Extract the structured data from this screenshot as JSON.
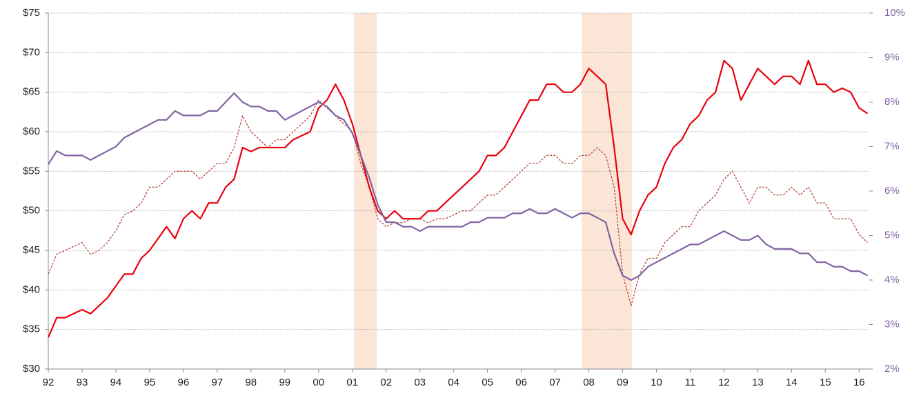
{
  "chart_data": {
    "type": "line",
    "x": [
      1992,
      1992.25,
      1992.5,
      1992.75,
      1993,
      1993.25,
      1993.5,
      1993.75,
      1994,
      1994.25,
      1994.5,
      1994.75,
      1995,
      1995.25,
      1995.5,
      1995.75,
      1996,
      1996.25,
      1996.5,
      1996.75,
      1997,
      1997.25,
      1997.5,
      1997.75,
      1998,
      1998.25,
      1998.5,
      1998.75,
      1999,
      1999.25,
      1999.5,
      1999.75,
      2000,
      2000.25,
      2000.5,
      2000.75,
      2001,
      2001.25,
      2001.5,
      2001.75,
      2002,
      2002.25,
      2002.5,
      2002.75,
      2003,
      2003.25,
      2003.5,
      2003.75,
      2004,
      2004.25,
      2004.5,
      2004.75,
      2005,
      2005.25,
      2005.5,
      2005.75,
      2006,
      2006.25,
      2006.5,
      2006.75,
      2007,
      2007.25,
      2007.5,
      2007.75,
      2008,
      2008.25,
      2008.5,
      2008.75,
      2009,
      2009.25,
      2009.5,
      2009.75,
      2010,
      2010.25,
      2010.5,
      2010.75,
      2011,
      2011.25,
      2011.5,
      2011.75,
      2012,
      2012.25,
      2012.5,
      2012.75,
      2013,
      2013.25,
      2013.5,
      2013.75,
      2014,
      2014.25,
      2014.5,
      2014.75,
      2015,
      2015.25,
      2015.5,
      2015.75,
      2016,
      2016.25
    ],
    "series": [
      {
        "color": "#e8000b",
        "style": "solid",
        "axis": "y",
        "values": [
          34,
          36.5,
          36.5,
          37,
          37.5,
          37,
          38,
          39,
          40.5,
          42,
          42,
          44,
          45,
          46.5,
          48,
          46.5,
          49,
          50,
          49,
          51,
          51,
          53,
          54,
          58,
          57.5,
          58,
          58,
          58,
          58,
          59,
          59.5,
          60,
          63,
          64,
          66,
          64,
          61,
          57,
          53,
          50,
          49,
          50,
          49,
          49,
          49,
          50,
          50,
          51,
          52,
          53,
          54,
          55,
          57,
          57,
          58,
          60,
          62,
          64,
          64,
          66,
          66,
          65,
          65,
          66,
          68,
          67,
          66,
          58,
          49,
          47,
          50,
          52,
          53,
          56,
          58,
          59,
          61,
          62,
          64,
          65,
          69,
          68,
          64,
          66,
          68,
          67,
          66,
          67,
          67,
          66,
          69,
          66,
          66,
          65,
          65.5,
          65,
          63,
          62.3
        ]
      },
      {
        "color": "#b5443a",
        "style": "dashed",
        "axis": "y",
        "values": [
          42,
          44.5,
          45,
          45.5,
          46,
          44.5,
          45,
          46,
          47.5,
          49.5,
          50,
          51,
          53,
          53,
          54,
          55,
          55,
          55,
          54,
          55,
          56,
          56,
          58,
          62,
          60,
          59,
          58,
          59,
          59,
          60,
          61,
          62,
          64,
          63,
          62,
          61,
          60,
          56,
          53,
          49,
          48,
          48.5,
          48.5,
          49,
          49,
          48.5,
          49,
          49,
          49.5,
          50,
          50,
          51,
          52,
          52,
          53,
          54,
          55,
          56,
          56,
          57,
          57,
          56,
          56,
          57,
          57,
          58,
          57,
          53,
          42,
          38,
          42,
          44,
          44,
          46,
          47,
          48,
          48,
          50,
          51,
          52,
          54,
          55,
          53,
          51,
          53,
          53,
          52,
          52,
          53,
          52,
          53,
          51,
          51,
          49,
          49,
          49,
          47,
          46
        ]
      },
      {
        "color": "#8064a2",
        "style": "solid",
        "axis": "y2",
        "values": [
          6.6,
          6.9,
          6.8,
          6.8,
          6.8,
          6.7,
          6.8,
          6.9,
          7.0,
          7.2,
          7.3,
          7.4,
          7.5,
          7.6,
          7.6,
          7.8,
          7.7,
          7.7,
          7.7,
          7.8,
          7.8,
          8.0,
          8.2,
          8.0,
          7.9,
          7.9,
          7.8,
          7.8,
          7.6,
          7.7,
          7.8,
          7.9,
          8.0,
          7.9,
          7.7,
          7.6,
          7.3,
          6.8,
          6.3,
          5.7,
          5.3,
          5.3,
          5.2,
          5.2,
          5.1,
          5.2,
          5.2,
          5.2,
          5.2,
          5.2,
          5.3,
          5.3,
          5.4,
          5.4,
          5.4,
          5.5,
          5.5,
          5.6,
          5.5,
          5.5,
          5.6,
          5.5,
          5.4,
          5.5,
          5.5,
          5.4,
          5.3,
          4.6,
          4.1,
          4.0,
          4.1,
          4.3,
          4.4,
          4.5,
          4.6,
          4.7,
          4.8,
          4.8,
          4.9,
          5.0,
          5.1,
          5.0,
          4.9,
          4.9,
          5.0,
          4.8,
          4.7,
          4.7,
          4.7,
          4.6,
          4.6,
          4.4,
          4.4,
          4.3,
          4.3,
          4.2,
          4.2,
          4.1
        ]
      }
    ],
    "shaded_regions": [
      [
        2001.05,
        2001.72
      ],
      [
        2007.79,
        2009.28
      ]
    ],
    "shade_color": "#fbe5d6",
    "xlim": [
      1992,
      2016.3
    ],
    "xticks": [
      {
        "value": 1992,
        "label": "92"
      },
      {
        "value": 1993,
        "label": "93"
      },
      {
        "value": 1994,
        "label": "94"
      },
      {
        "value": 1995,
        "label": "95"
      },
      {
        "value": 1996,
        "label": "96"
      },
      {
        "value": 1997,
        "label": "97"
      },
      {
        "value": 1998,
        "label": "98"
      },
      {
        "value": 1999,
        "label": "99"
      },
      {
        "value": 2000,
        "label": "00"
      },
      {
        "value": 2001,
        "label": "01"
      },
      {
        "value": 2002,
        "label": "02"
      },
      {
        "value": 2003,
        "label": "03"
      },
      {
        "value": 2004,
        "label": "04"
      },
      {
        "value": 2005,
        "label": "05"
      },
      {
        "value": 2006,
        "label": "06"
      },
      {
        "value": 2007,
        "label": "07"
      },
      {
        "value": 2008,
        "label": "08"
      },
      {
        "value": 2009,
        "label": "09"
      },
      {
        "value": 2010,
        "label": "10"
      },
      {
        "value": 2011,
        "label": "11"
      },
      {
        "value": 2012,
        "label": "12"
      },
      {
        "value": 2013,
        "label": "13"
      },
      {
        "value": 2014,
        "label": "14"
      },
      {
        "value": 2015,
        "label": "15"
      },
      {
        "value": 2016,
        "label": "16"
      }
    ],
    "ylim": [
      30,
      75
    ],
    "yticks": [
      {
        "value": 30,
        "label": "$30"
      },
      {
        "value": 35,
        "label": "$35"
      },
      {
        "value": 40,
        "label": "$40"
      },
      {
        "value": 45,
        "label": "$45"
      },
      {
        "value": 50,
        "label": "$50"
      },
      {
        "value": 55,
        "label": "$55"
      },
      {
        "value": 60,
        "label": "$60"
      },
      {
        "value": 65,
        "label": "$65"
      },
      {
        "value": 70,
        "label": "$70"
      },
      {
        "value": 75,
        "label": "$75"
      }
    ],
    "y2lim": [
      2,
      10
    ],
    "y2ticks": [
      {
        "value": 2,
        "label": "2%"
      },
      {
        "value": 3,
        "label": "3%"
      },
      {
        "value": 4,
        "label": "4%"
      },
      {
        "value": 5,
        "label": "5%"
      },
      {
        "value": 6,
        "label": "6%"
      },
      {
        "value": 7,
        "label": "7%"
      },
      {
        "value": 8,
        "label": "8%"
      },
      {
        "value": 9,
        "label": "9%"
      },
      {
        "value": 10,
        "label": "10%"
      }
    ],
    "y2_color": "#8064a2",
    "grid": true
  }
}
